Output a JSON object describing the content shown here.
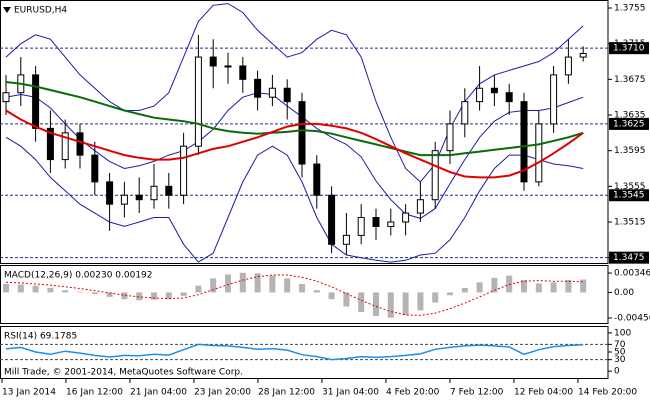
{
  "x_axis_labels": [
    "13 Jan 2014",
    "16 Jan 12:00",
    "21 Jan 04:00",
    "23 Jan 20:00",
    "28 Jan 12:00",
    "31 Jan 04:00",
    "4 Feb 20:00",
    "7 Feb 12:00",
    "12 Feb 04:00",
    "14 Feb 20:00"
  ],
  "chart_data": [
    {
      "type": "candlestick",
      "title": "EURUSD,H4",
      "color": "#000000",
      "open": [
        1.365,
        1.366,
        1.368,
        1.362,
        1.3585,
        1.3615,
        1.359,
        1.356,
        1.3535,
        1.3545,
        1.354,
        1.3555,
        1.3545,
        1.36,
        1.37,
        1.369,
        1.369,
        1.3675,
        1.3655,
        1.3665,
        1.365,
        1.358,
        1.3545,
        1.349,
        1.35,
        1.352,
        1.351,
        1.3515,
        1.3525,
        1.354,
        1.3595,
        1.3625,
        1.365,
        1.3665,
        1.366,
        1.365,
        1.356,
        1.3625,
        1.368,
        1.37
      ],
      "high": [
        1.368,
        1.37,
        1.369,
        1.364,
        1.363,
        1.3625,
        1.3605,
        1.357,
        1.356,
        1.3565,
        1.358,
        1.357,
        1.3615,
        1.3725,
        1.372,
        1.3705,
        1.37,
        1.3685,
        1.368,
        1.3675,
        1.366,
        1.359,
        1.3555,
        1.3525,
        1.3535,
        1.353,
        1.353,
        1.3535,
        1.356,
        1.3605,
        1.364,
        1.3665,
        1.369,
        1.368,
        1.367,
        1.366,
        1.364,
        1.369,
        1.372,
        1.3712
      ],
      "low": [
        1.3635,
        1.3645,
        1.3605,
        1.357,
        1.3575,
        1.3575,
        1.3545,
        1.3505,
        1.352,
        1.3525,
        1.353,
        1.353,
        1.3535,
        1.359,
        1.3665,
        1.367,
        1.366,
        1.364,
        1.3645,
        1.363,
        1.3565,
        1.353,
        1.348,
        1.3478,
        1.349,
        1.3495,
        1.35,
        1.35,
        1.3515,
        1.353,
        1.358,
        1.361,
        1.364,
        1.3645,
        1.3635,
        1.355,
        1.3555,
        1.3615,
        1.367,
        1.3695
      ],
      "close": [
        1.366,
        1.368,
        1.362,
        1.3585,
        1.3615,
        1.359,
        1.356,
        1.3535,
        1.3545,
        1.354,
        1.3555,
        1.3545,
        1.36,
        1.37,
        1.369,
        1.369,
        1.3675,
        1.3655,
        1.3665,
        1.365,
        1.358,
        1.3545,
        1.349,
        1.35,
        1.352,
        1.351,
        1.3515,
        1.3525,
        1.354,
        1.3595,
        1.3625,
        1.365,
        1.3665,
        1.366,
        1.365,
        1.356,
        1.3625,
        1.368,
        1.37,
        1.3704
      ],
      "bands": {
        "color": "#1c1ca8",
        "upper": [
          1.37,
          1.3715,
          1.3725,
          1.372,
          1.37,
          1.368,
          1.3665,
          1.365,
          1.364,
          1.364,
          1.3645,
          1.366,
          1.37,
          1.374,
          1.3758,
          1.376,
          1.375,
          1.373,
          1.3715,
          1.37,
          1.3705,
          1.372,
          1.373,
          1.3725,
          1.37,
          1.365,
          1.361,
          1.3575,
          1.356,
          1.358,
          1.362,
          1.365,
          1.367,
          1.368,
          1.3685,
          1.369,
          1.3695,
          1.3705,
          1.372,
          1.3735
        ],
        "middle": [
          1.3655,
          1.3658,
          1.3655,
          1.3643,
          1.3625,
          1.3608,
          1.3595,
          1.3583,
          1.3575,
          1.3578,
          1.3583,
          1.359,
          1.3595,
          1.3605,
          1.3619,
          1.364,
          1.3655,
          1.366,
          1.3658,
          1.3645,
          1.3633,
          1.362,
          1.361,
          1.3602,
          1.3588,
          1.3561,
          1.354,
          1.3524,
          1.3519,
          1.353,
          1.3558,
          1.3585,
          1.361,
          1.3628,
          1.3638,
          1.364,
          1.364,
          1.3643,
          1.3649,
          1.3655
        ],
        "lower": [
          1.361,
          1.36,
          1.3585,
          1.3565,
          1.355,
          1.3535,
          1.3525,
          1.3515,
          1.351,
          1.3515,
          1.352,
          1.352,
          1.349,
          1.347,
          1.348,
          1.352,
          1.356,
          1.359,
          1.36,
          1.359,
          1.356,
          1.352,
          1.349,
          1.3478,
          1.3475,
          1.3472,
          1.347,
          1.3472,
          1.3478,
          1.348,
          1.3495,
          1.352,
          1.355,
          1.3575,
          1.359,
          1.359,
          1.3585,
          1.358,
          1.3578,
          1.3575
        ]
      },
      "ma": [
        {
          "color": "#0b6b0b",
          "values": [
            1.3672,
            1.367,
            1.3667,
            1.3663,
            1.3659,
            1.3655,
            1.365,
            1.3645,
            1.364,
            1.3636,
            1.3632,
            1.363,
            1.3628,
            1.3625,
            1.362,
            1.3617,
            1.3615,
            1.3614,
            1.3615,
            1.3616,
            1.3618,
            1.3617,
            1.3614,
            1.361,
            1.3606,
            1.3602,
            1.3598,
            1.3594,
            1.359,
            1.359,
            1.359,
            1.3592,
            1.3594,
            1.3596,
            1.3598,
            1.36,
            1.3602,
            1.3606,
            1.361,
            1.3615
          ]
        },
        {
          "color": "#e00000",
          "values": [
            1.364,
            1.363,
            1.3622,
            1.3615,
            1.361,
            1.3605,
            1.36,
            1.3595,
            1.359,
            1.3587,
            1.3585,
            1.3585,
            1.3587,
            1.3592,
            1.3597,
            1.36,
            1.3605,
            1.361,
            1.3616,
            1.3622,
            1.3625,
            1.3625,
            1.3623,
            1.362,
            1.3615,
            1.3608,
            1.36,
            1.3592,
            1.3585,
            1.3578,
            1.3571,
            1.3566,
            1.3565,
            1.3565,
            1.3567,
            1.3573,
            1.3582,
            1.3592,
            1.3603,
            1.3615
          ]
        }
      ],
      "levels": [
        {
          "value": 1.371,
          "label": "1.3710"
        },
        1.3625,
        1.3545,
        1.3475
      ],
      "ylim": [
        1.3469,
        1.3764
      ],
      "yticks": [
        1.3755,
        1.3715,
        1.3675,
        1.3635,
        1.3595,
        1.3555,
        1.3515,
        1.3475
      ]
    },
    {
      "type": "macd",
      "title": "MACD(12,26,9) 0.00230 0.00192",
      "hist_color": "#b4b4b4",
      "signal_color": "#e00000",
      "histogram": [
        0.0015,
        0.0014,
        0.0012,
        0.0008,
        0.0004,
        0.0001,
        -0.0003,
        -0.0008,
        -0.0012,
        -0.0014,
        -0.0013,
        -0.0012,
        -0.0006,
        0.0012,
        0.0025,
        0.0032,
        0.0035,
        0.0034,
        0.003,
        0.0025,
        0.0015,
        0.0004,
        -0.0012,
        -0.0025,
        -0.0035,
        -0.0042,
        -0.0045,
        -0.004,
        -0.0032,
        -0.0018,
        -0.0005,
        0.0008,
        0.0018,
        0.0026,
        0.003,
        0.0022,
        0.0016,
        0.0018,
        0.0022,
        0.0023
      ],
      "signal": [
        0.0018,
        0.0017,
        0.0015,
        0.0013,
        0.001,
        0.0007,
        0.0003,
        -0.0001,
        -0.0005,
        -0.0008,
        -0.001,
        -0.0011,
        -0.001,
        -0.0004,
        0.0005,
        0.0014,
        0.0022,
        0.0028,
        0.0031,
        0.0031,
        0.0027,
        0.002,
        0.001,
        -0.0002,
        -0.0014,
        -0.0025,
        -0.0034,
        -0.004,
        -0.0041,
        -0.0037,
        -0.0029,
        -0.0019,
        -0.0008,
        0.0004,
        0.0014,
        0.002,
        0.0021,
        0.002,
        0.002,
        0.0019
      ],
      "ylim": [
        -0.00545,
        0.00489
      ],
      "yticks": [
        0.00346,
        {
          "value": 0,
          "label": "0.00"
        },
        -0.00456
      ]
    },
    {
      "type": "rsi",
      "title": "RSI(14) 69.1785",
      "annotation": "Mill Trade, © 2001-2014, MetaQuotes Software Corp.",
      "color": "#1e8ee6",
      "values": [
        58,
        62,
        50,
        44,
        52,
        47,
        41,
        37,
        41,
        40,
        44,
        42,
        56,
        70,
        67,
        66,
        62,
        57,
        59,
        55,
        43,
        38,
        30,
        33,
        38,
        36,
        38,
        41,
        45,
        57,
        62,
        66,
        68,
        66,
        63,
        44,
        56,
        64,
        67,
        69
      ],
      "levels": [
        70,
        30
      ],
      "ylim": [
        -18,
        118
      ],
      "yticks": [
        100,
        70,
        50,
        30,
        0
      ]
    }
  ]
}
